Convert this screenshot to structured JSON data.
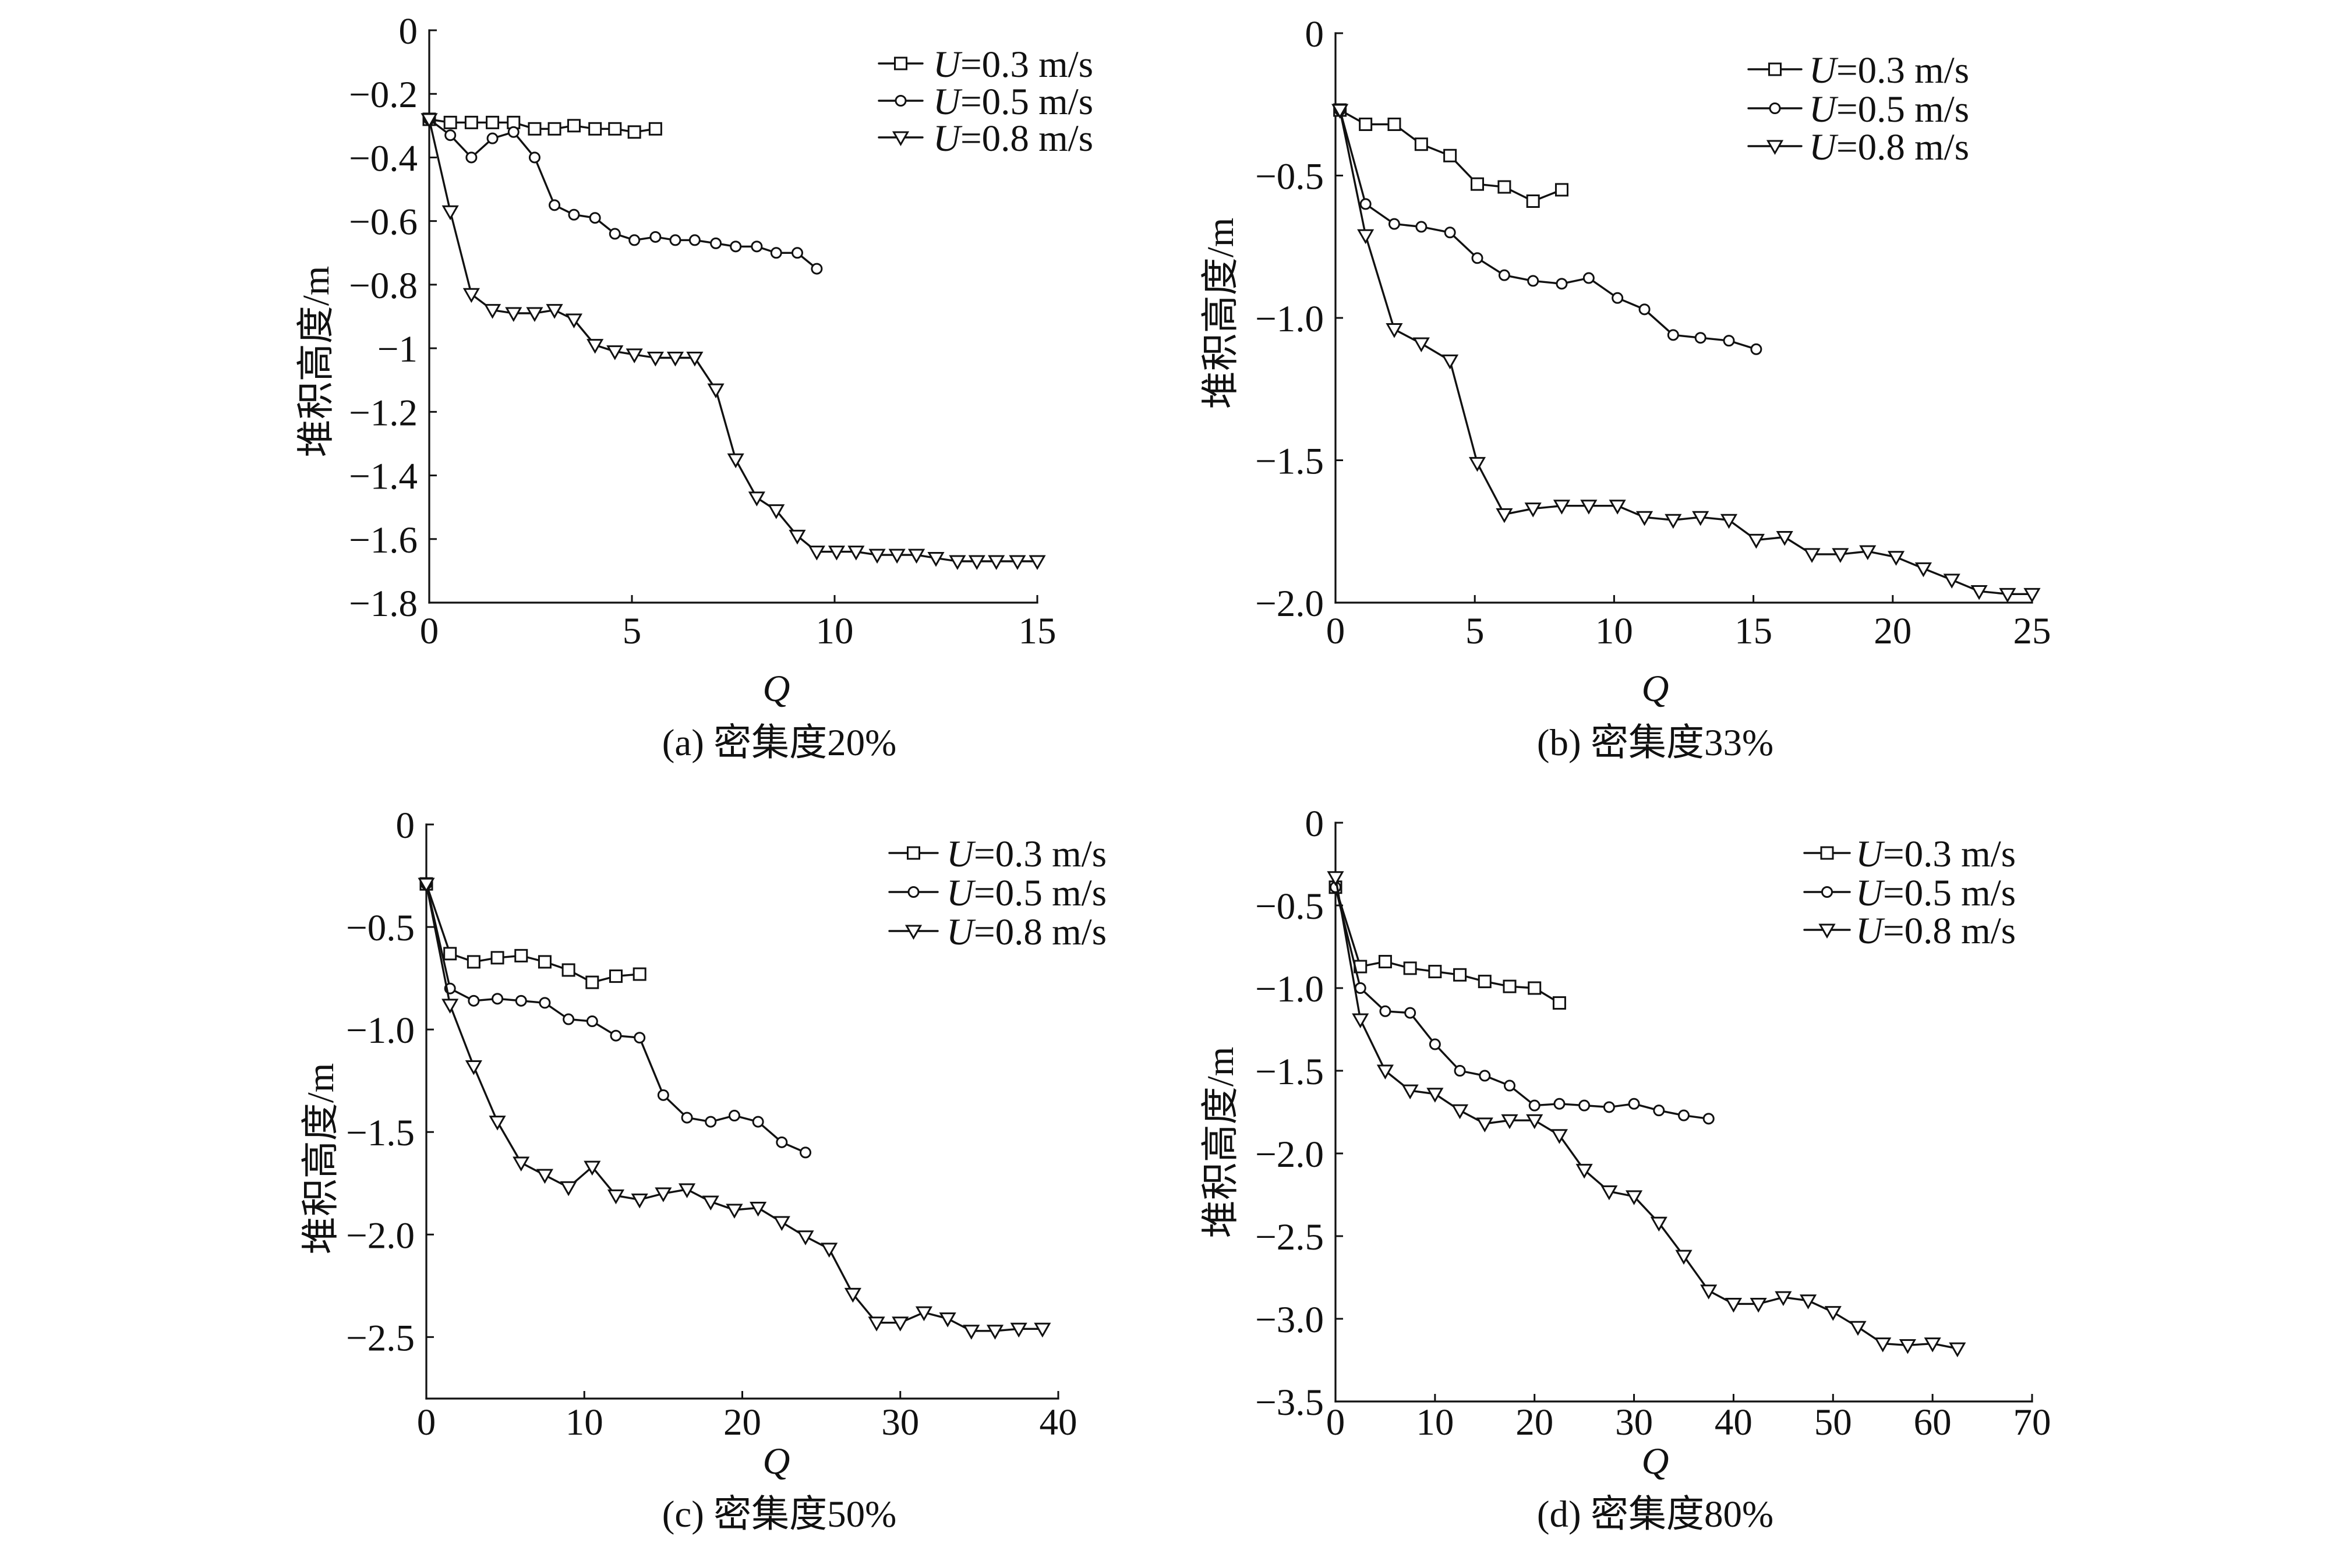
{
  "chart_data": [
    {
      "type": "line",
      "caption": "(a) 密集度20%",
      "xlabel": "Q",
      "ylabel": "堆积高度/m",
      "xlim": [
        0,
        15
      ],
      "ylim": [
        -1.8,
        0
      ],
      "xticks": [
        0,
        5,
        10,
        15
      ],
      "xtick_labels": [
        "0",
        "5",
        "10",
        "15"
      ],
      "yticks": [
        0,
        -0.2,
        -0.4,
        -0.6,
        -0.8,
        -1.0,
        -1.2,
        -1.4,
        -1.6,
        -1.8
      ],
      "ytick_labels": [
        "0",
        "−0.2",
        "−0.4",
        "−0.6",
        "−0.8",
        "−1",
        "−1.2",
        "−1.4",
        "−1.6",
        "−1.8"
      ],
      "grid": false,
      "legend_position": "top-right",
      "series": [
        {
          "label_var": "U",
          "label_rest": "=0.3 m/s",
          "marker": "square",
          "x": [
            0,
            0.52,
            1.04,
            1.56,
            2.08,
            2.6,
            3.09,
            3.57,
            4.09,
            4.58,
            5.06,
            5.58
          ],
          "y": [
            -0.28,
            -0.29,
            -0.29,
            -0.29,
            -0.29,
            -0.31,
            -0.31,
            -0.3,
            -0.31,
            -0.31,
            -0.32,
            -0.31
          ]
        },
        {
          "label_var": "U",
          "label_rest": "=0.5 m/s",
          "marker": "circle",
          "x": [
            0,
            0.52,
            1.04,
            1.56,
            2.08,
            2.6,
            3.09,
            3.57,
            4.09,
            4.58,
            5.06,
            5.58,
            6.07,
            6.55,
            7.07,
            7.56,
            8.08,
            8.56,
            9.08,
            9.56
          ],
          "y": [
            -0.28,
            -0.33,
            -0.4,
            -0.34,
            -0.32,
            -0.4,
            -0.55,
            -0.58,
            -0.59,
            -0.64,
            -0.66,
            -0.65,
            -0.66,
            -0.66,
            -0.67,
            -0.68,
            -0.68,
            -0.7,
            -0.7,
            -0.75
          ]
        },
        {
          "label_var": "U",
          "label_rest": "=0.8 m/s",
          "marker": "triangle-down",
          "x": [
            0,
            0.52,
            1.04,
            1.56,
            2.08,
            2.6,
            3.09,
            3.57,
            4.09,
            4.58,
            5.06,
            5.58,
            6.07,
            6.55,
            7.07,
            7.56,
            8.08,
            8.56,
            9.08,
            9.56,
            10.05,
            10.53,
            11.05,
            11.54,
            12.02,
            12.5,
            13.03,
            13.51,
            13.99,
            14.51,
            15.0
          ],
          "y": [
            -0.28,
            -0.57,
            -0.83,
            -0.88,
            -0.89,
            -0.89,
            -0.88,
            -0.91,
            -0.99,
            -1.01,
            -1.02,
            -1.03,
            -1.03,
            -1.03,
            -1.13,
            -1.35,
            -1.47,
            -1.51,
            -1.59,
            -1.64,
            -1.64,
            -1.64,
            -1.65,
            -1.65,
            -1.65,
            -1.66,
            -1.67,
            -1.67,
            -1.67,
            -1.67,
            -1.67
          ]
        }
      ]
    },
    {
      "type": "line",
      "caption": "(b) 密集度33%",
      "xlabel": "Q",
      "ylabel": "堆积高度/m",
      "xlim": [
        0,
        25
      ],
      "ylim": [
        -2.0,
        0
      ],
      "xticks": [
        0,
        5,
        10,
        15,
        20,
        25
      ],
      "xtick_labels": [
        "0",
        "5",
        "10",
        "15",
        "20",
        "25"
      ],
      "yticks": [
        0,
        -0.5,
        -1.0,
        -1.5,
        -2.0
      ],
      "ytick_labels": [
        "0",
        "−0.5",
        "−1.0",
        "−1.5",
        "−2.0"
      ],
      "grid": false,
      "legend_position": "top-right",
      "series": [
        {
          "label_var": "U",
          "label_rest": "=0.3 m/s",
          "marker": "square",
          "x": [
            0.16,
            1.08,
            2.11,
            3.08,
            4.11,
            5.09,
            6.06,
            7.09,
            8.12
          ],
          "y": [
            -0.27,
            -0.32,
            -0.32,
            -0.39,
            -0.43,
            -0.53,
            -0.54,
            -0.59,
            -0.55
          ]
        },
        {
          "label_var": "U",
          "label_rest": "=0.5 m/s",
          "marker": "circle",
          "x": [
            0.16,
            1.08,
            2.11,
            3.08,
            4.11,
            5.09,
            6.06,
            7.09,
            8.12,
            9.09,
            10.12,
            11.09,
            12.12,
            13.1,
            14.12,
            15.1
          ],
          "y": [
            -0.27,
            -0.6,
            -0.67,
            -0.68,
            -0.7,
            -0.79,
            -0.85,
            -0.87,
            -0.88,
            -0.86,
            -0.93,
            -0.97,
            -1.06,
            -1.07,
            -1.08,
            -1.11
          ]
        },
        {
          "label_var": "U",
          "label_rest": "=0.8 m/s",
          "marker": "triangle-down",
          "x": [
            0.16,
            1.08,
            2.11,
            3.08,
            4.11,
            5.09,
            6.06,
            7.09,
            8.12,
            9.09,
            10.12,
            11.09,
            12.12,
            13.1,
            14.12,
            15.1,
            16.12,
            17.1,
            18.12,
            19.1,
            20.12,
            21.1,
            22.12,
            23.1,
            24.12,
            25.0
          ],
          "y": [
            -0.27,
            -0.71,
            -1.04,
            -1.09,
            -1.15,
            -1.51,
            -1.69,
            -1.67,
            -1.66,
            -1.66,
            -1.66,
            -1.7,
            -1.71,
            -1.7,
            -1.71,
            -1.78,
            -1.77,
            -1.83,
            -1.83,
            -1.82,
            -1.84,
            -1.88,
            -1.92,
            -1.96,
            -1.97,
            -1.97
          ]
        }
      ]
    },
    {
      "type": "line",
      "caption": "(c) 密集度50%",
      "xlabel": "Q",
      "ylabel": "堆积高度/m",
      "xlim": [
        0,
        40
      ],
      "ylim": [
        -2.8,
        0
      ],
      "xticks": [
        0,
        10,
        20,
        30,
        40
      ],
      "xtick_labels": [
        "0",
        "10",
        "20",
        "30",
        "40"
      ],
      "yticks": [
        0,
        -0.5,
        -1.0,
        -1.5,
        -2.0,
        -2.5
      ],
      "ytick_labels": [
        "0",
        "−0.5",
        "−1.0",
        "−1.5",
        "−2.0",
        "−2.5"
      ],
      "grid": false,
      "legend_position": "top-right",
      "series": [
        {
          "label_var": "U",
          "label_rest": "=0.3 m/s",
          "marker": "square",
          "x": [
            0,
            1.5,
            3,
            4.5,
            6,
            7.5,
            9,
            10.5,
            12,
            13.5
          ],
          "y": [
            -0.29,
            -0.63,
            -0.67,
            -0.65,
            -0.64,
            -0.67,
            -0.71,
            -0.77,
            -0.74,
            -0.73
          ]
        },
        {
          "label_var": "U",
          "label_rest": "=0.5 m/s",
          "marker": "circle",
          "x": [
            0,
            1.5,
            3,
            4.5,
            6,
            7.5,
            9,
            10.5,
            12,
            13.5,
            15,
            16.5,
            18,
            19.5,
            21,
            22.5,
            24
          ],
          "y": [
            -0.29,
            -0.8,
            -0.86,
            -0.85,
            -0.86,
            -0.87,
            -0.95,
            -0.96,
            -1.03,
            -1.04,
            -1.32,
            -1.43,
            -1.45,
            -1.42,
            -1.45,
            -1.55,
            -1.6
          ]
        },
        {
          "label_var": "U",
          "label_rest": "=0.8 m/s",
          "marker": "triangle-down",
          "x": [
            0,
            1.5,
            3,
            4.5,
            6,
            7.5,
            9,
            10.5,
            12,
            13.5,
            15,
            16.5,
            18,
            19.5,
            21,
            22.5,
            24,
            25.5,
            27,
            28.5,
            30,
            31.5,
            33,
            34.5,
            36,
            37.5,
            39
          ],
          "y": [
            -0.29,
            -0.88,
            -1.18,
            -1.45,
            -1.65,
            -1.71,
            -1.77,
            -1.67,
            -1.81,
            -1.83,
            -1.8,
            -1.78,
            -1.84,
            -1.88,
            -1.87,
            -1.94,
            -2.01,
            -2.07,
            -2.29,
            -2.43,
            -2.43,
            -2.38,
            -2.41,
            -2.47,
            -2.47,
            -2.46,
            -2.46
          ]
        }
      ]
    },
    {
      "type": "line",
      "caption": "(d) 密集度80%",
      "xlabel": "Q",
      "ylabel": "堆积高度/m",
      "xlim": [
        0,
        70
      ],
      "ylim": [
        -3.5,
        0
      ],
      "xticks": [
        0,
        10,
        20,
        30,
        40,
        50,
        60,
        70
      ],
      "xtick_labels": [
        "0",
        "10",
        "20",
        "30",
        "40",
        "50",
        "60",
        "70"
      ],
      "yticks": [
        0,
        -0.5,
        -1.0,
        -1.5,
        -2.0,
        -2.5,
        -3.0,
        -3.5
      ],
      "ytick_labels": [
        "0",
        "−0.5",
        "−1.0",
        "−1.5",
        "−2.0",
        "−2.5",
        "−3.0",
        "−3.5"
      ],
      "grid": false,
      "legend_position": "top-right",
      "series": [
        {
          "label_var": "U",
          "label_rest": "=0.3 m/s",
          "marker": "square",
          "x": [
            0,
            2.5,
            5,
            7.5,
            10,
            12.5,
            15,
            17.5,
            20,
            22.5
          ],
          "y": [
            -0.39,
            -0.87,
            -0.84,
            -0.88,
            -0.9,
            -0.92,
            -0.96,
            -0.99,
            -1.0,
            -1.09
          ]
        },
        {
          "label_var": "U",
          "label_rest": "=0.5 m/s",
          "marker": "circle",
          "x": [
            0,
            2.5,
            5,
            7.5,
            10,
            12.5,
            15,
            17.5,
            20,
            22.5,
            25,
            27.5,
            30,
            32.5,
            35,
            37.5
          ],
          "y": [
            -0.39,
            -1.0,
            -1.14,
            -1.15,
            -1.34,
            -1.5,
            -1.53,
            -1.59,
            -1.71,
            -1.7,
            -1.71,
            -1.72,
            -1.7,
            -1.74,
            -1.77,
            -1.79
          ]
        },
        {
          "label_var": "U",
          "label_rest": "=0.8 m/s",
          "marker": "triangle-down",
          "x": [
            0,
            2.5,
            5,
            7.5,
            10,
            12.5,
            15,
            17.5,
            20,
            22.5,
            25,
            27.5,
            30,
            32.5,
            35,
            37.5,
            40,
            42.5,
            45,
            47.5,
            50,
            52.5,
            55,
            57.5,
            60,
            62.5
          ],
          "y": [
            -0.33,
            -1.19,
            -1.5,
            -1.62,
            -1.64,
            -1.74,
            -1.82,
            -1.8,
            -1.8,
            -1.89,
            -2.1,
            -2.23,
            -2.26,
            -2.42,
            -2.62,
            -2.83,
            -2.91,
            -2.91,
            -2.87,
            -2.89,
            -2.96,
            -3.05,
            -3.15,
            -3.16,
            -3.15,
            -3.18
          ]
        }
      ]
    }
  ]
}
